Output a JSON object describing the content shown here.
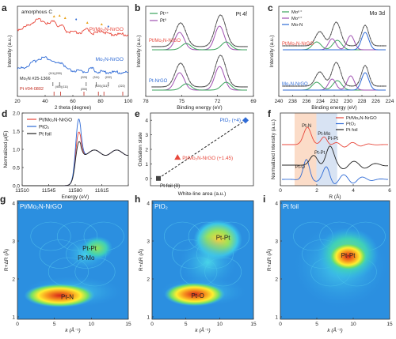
{
  "chart_data": [
    {
      "panel": "a",
      "type": "line",
      "xlabel": "2 theta (degree)",
      "ylabel": "Intensity (a.u.)",
      "xlim": [
        10,
        100
      ],
      "xticks": [
        "20",
        "40",
        "60",
        "80",
        "100"
      ],
      "annotations": [
        "amorphous C",
        "Mo₂N #25-1366",
        "Pt #04-0802"
      ],
      "hkl_labels": [
        "(111)",
        "(200)",
        "(220)",
        "(311)",
        "(222)",
        "(400)",
        "(111)",
        "(200)",
        "(220)",
        "(311)",
        "(222)"
      ],
      "series": [
        {
          "name": "Pt/Mo₂N-NrGO",
          "color": "#e8473b"
        },
        {
          "name": "Mo₂N-NrGO",
          "color": "#2f6bd6"
        }
      ],
      "markers": [
        "▲",
        "♦"
      ]
    },
    {
      "panel": "b",
      "type": "line",
      "title": "Pt 4f",
      "xlabel": "Binding energy (eV)",
      "ylabel": "Intensity (a.u.)",
      "xlim": [
        78,
        68
      ],
      "xticks": [
        "78",
        "75",
        "72",
        "69"
      ],
      "legend": [
        {
          "name": "Pt⁴⁺",
          "color": "#3aa35c"
        },
        {
          "name": "Pt⁰",
          "color": "#9e4fb0"
        }
      ],
      "series": [
        {
          "name": "Pt/Mo₂N-NrGO",
          "color": "#e8473b"
        },
        {
          "name": "Pt-NrGO",
          "color": "#2f6bd6"
        }
      ]
    },
    {
      "panel": "c",
      "type": "line",
      "title": "Mo 3d",
      "xlabel": "Binding energy (eV)",
      "ylabel": "Intensity (a.u.)",
      "xlim": [
        240,
        224
      ],
      "xticks": [
        "240",
        "238",
        "236",
        "234",
        "232",
        "230",
        "228",
        "226",
        "224"
      ],
      "legend": [
        {
          "name": "Mo⁶⁺",
          "color": "#3aa35c"
        },
        {
          "name": "Mo⁴⁺",
          "color": "#9e4fb0"
        },
        {
          "name": "Mo-N",
          "color": "#2f6bd6"
        }
      ],
      "series": [
        {
          "name": "Pt/Mo₂N-NrGO",
          "color": "#e8473b"
        },
        {
          "name": "Mo₂N-NrGO",
          "color": "#2f6bd6"
        }
      ]
    },
    {
      "panel": "d",
      "type": "line",
      "xlabel": "Energy (eV)",
      "ylabel": "Normalized μ(E)",
      "xlim": [
        11510,
        11645
      ],
      "xticks": [
        "11510",
        "11545",
        "11580",
        "11615"
      ],
      "yticks": [
        "0.0",
        "0.5",
        "1.0",
        "1.5",
        "2.0"
      ],
      "ylim": [
        0,
        2.2
      ],
      "series": [
        {
          "name": "Pt/Mo₂N-NrGO",
          "color": "#e8473b"
        },
        {
          "name": "PtO₂",
          "color": "#2f6bd6"
        },
        {
          "name": "Pt foil",
          "color": "#222222"
        }
      ]
    },
    {
      "panel": "e",
      "type": "scatter",
      "xlabel": "White-line area (a.u.)",
      "ylabel": "Oxidation state",
      "ylim": [
        -0.5,
        4.5
      ],
      "yticks": [
        "0",
        "1",
        "2",
        "3",
        "4"
      ],
      "points": [
        {
          "label": "Pt foil (0)",
          "y": 0,
          "x": 0.0,
          "color": "#444444",
          "marker": "square"
        },
        {
          "label": "Pt/Mo₂N-NrGO (+1.45)",
          "y": 1.45,
          "x": 0.22,
          "color": "#e8473b",
          "marker": "triangle"
        },
        {
          "label": "PtO₂ (+4)",
          "y": 4,
          "x": 1.0,
          "color": "#2f6bd6",
          "marker": "diamond"
        }
      ]
    },
    {
      "panel": "f",
      "type": "line",
      "xlabel": "R (Å)",
      "ylabel": "Normalized Intensity (a.u.)",
      "xlim": [
        0,
        6
      ],
      "xticks": [
        "0",
        "2",
        "4",
        "6"
      ],
      "series": [
        {
          "name": "Pt/Mo₂N-NrGO",
          "color": "#e8473b"
        },
        {
          "name": "PtO₂",
          "color": "#2f6bd6"
        },
        {
          "name": "Pt foil",
          "color": "#222222"
        }
      ],
      "annotations": [
        "Pt-N",
        "Pt-Mo",
        "Pt-Pt",
        "Pt-Pt",
        "Pt-O"
      ]
    },
    {
      "panel": "g",
      "type": "heatmap",
      "title": "Pt/Mo₂N-NrGO",
      "xlabel": "k (Å⁻¹)",
      "ylabel": "R+ΔR (Å)",
      "xlim": [
        0,
        15
      ],
      "ylim": [
        1,
        4
      ],
      "xticks": [
        "0",
        "5",
        "10",
        "15"
      ],
      "yticks": [
        "1",
        "2",
        "3",
        "4"
      ],
      "annotations": [
        "Pt-Pt",
        "Pt-Mo",
        "Pt-N"
      ]
    },
    {
      "panel": "h",
      "type": "heatmap",
      "title": "PtO₂",
      "xlabel": "k (Å⁻¹)",
      "ylabel": "R+ΔR (Å)",
      "xlim": [
        0,
        15
      ],
      "ylim": [
        1,
        4
      ],
      "xticks": [
        "0",
        "5",
        "10",
        "15"
      ],
      "yticks": [
        "1",
        "2",
        "3",
        "4"
      ],
      "annotations": [
        "Pt-Pt",
        "Pt-O"
      ]
    },
    {
      "panel": "i",
      "type": "heatmap",
      "title": "Pt foil",
      "xlabel": "k (Å⁻¹)",
      "ylabel": "R+ΔR (Å)",
      "xlim": [
        0,
        15
      ],
      "ylim": [
        1,
        4
      ],
      "xticks": [
        "0",
        "5",
        "10",
        "15"
      ],
      "yticks": [
        "1",
        "2",
        "3",
        "4"
      ],
      "annotations": [
        "Pt-Pt"
      ]
    }
  ],
  "panel_letters": [
    "a",
    "b",
    "c",
    "d",
    "e",
    "f",
    "g",
    "h",
    "i"
  ]
}
